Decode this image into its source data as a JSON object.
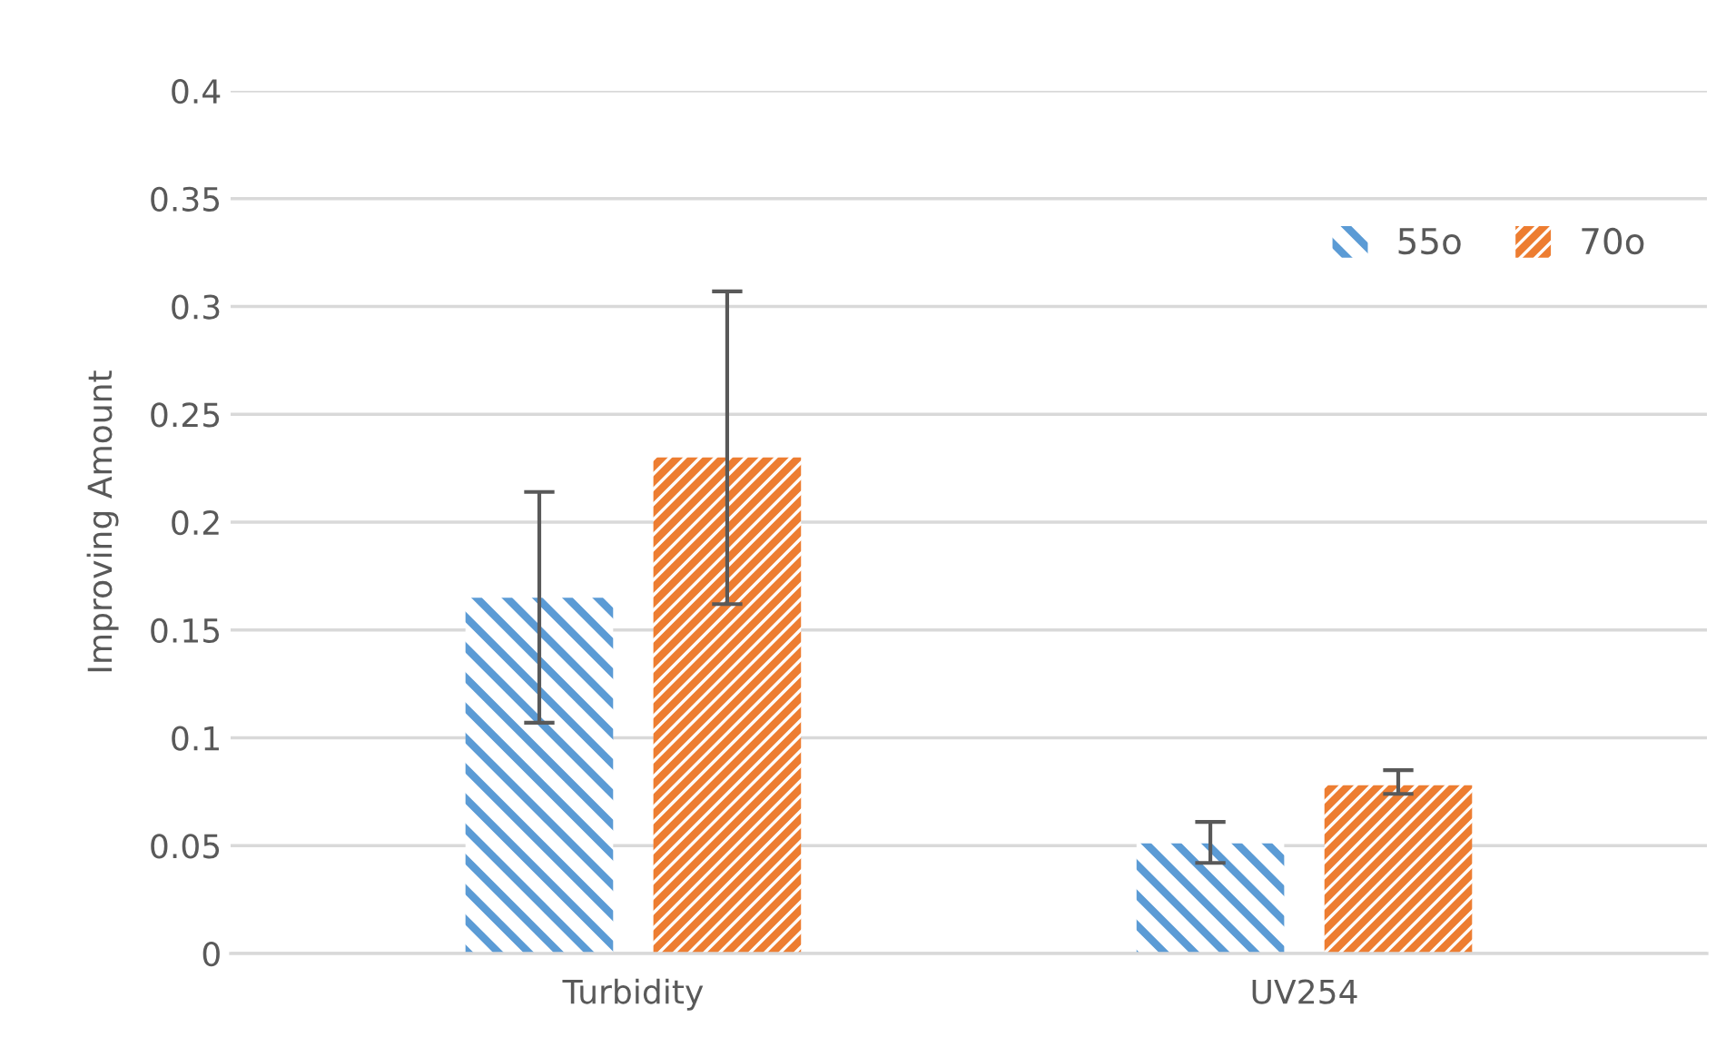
{
  "chart_data": {
    "type": "bar",
    "ylabel": "Improving Amount",
    "categories": [
      "Turbidity",
      "UV254"
    ],
    "series": [
      {
        "name": "55o",
        "color": "#5b9bd5",
        "values": [
          0.165,
          0.051
        ],
        "errors": [
          [
            0.107,
            0.214
          ],
          [
            0.042,
            0.061
          ]
        ]
      },
      {
        "name": "70o",
        "color": "#ed7d31",
        "values": [
          0.23,
          0.078
        ],
        "errors": [
          [
            0.162,
            0.307
          ],
          [
            0.074,
            0.085
          ]
        ]
      }
    ],
    "ylim": [
      0,
      0.4
    ],
    "yticks": [
      0,
      0.05,
      0.1,
      0.15,
      0.2,
      0.25,
      0.3,
      0.35,
      0.4
    ],
    "grid": "y",
    "legend": "top right"
  }
}
